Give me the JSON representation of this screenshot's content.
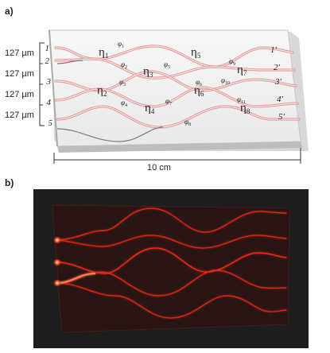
{
  "panel_a_label": "a)",
  "panel_b_label": "b)",
  "spacing_labels": [
    "127 µm",
    "127 µm",
    "127 µm",
    "127 µm"
  ],
  "length_label": "10 cm",
  "input_ports": [
    "1",
    "2",
    "3",
    "4",
    "5"
  ],
  "output_ports": [
    "1′",
    "2′",
    "3′",
    "4′",
    "5′"
  ],
  "eta_symbol": "η",
  "eta_labels": [
    "1",
    "2",
    "3",
    "4",
    "5",
    "6",
    "7",
    "8"
  ],
  "phi_symbol": "φ",
  "phi_labels": [
    "1",
    "2",
    "3",
    "4",
    "5",
    "6",
    "7",
    "8",
    "9",
    "10",
    "11"
  ],
  "colors": {
    "chip_face": "#f2f2f2",
    "chip_edge": "#cfcfcf",
    "waveguide": "#e59b9b",
    "waveguide_dark": "#7a7a7a",
    "photo_bg": "#1f1f1f",
    "laser": "#ff2a18"
  }
}
